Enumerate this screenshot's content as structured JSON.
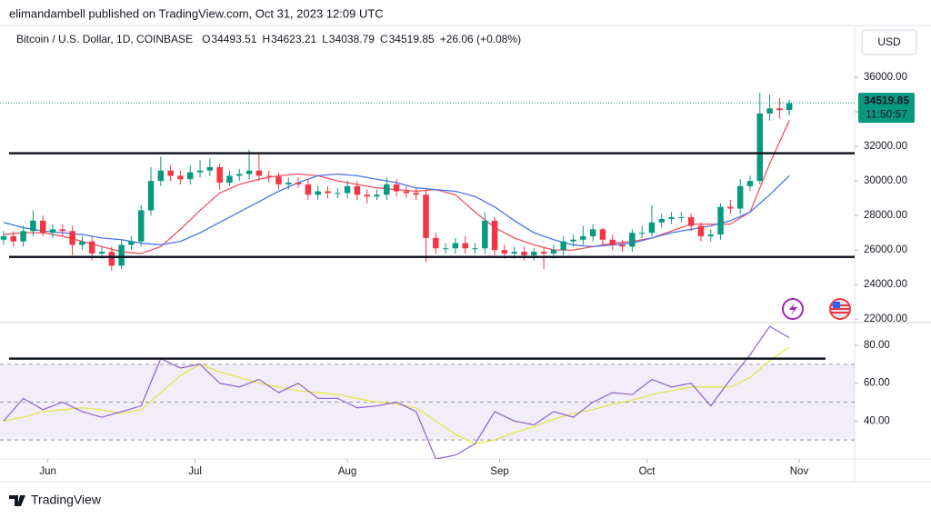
{
  "header": "elimandambell published on TradingView.com, Oct 31, 2023 12:09 UTC",
  "footer": "TradingView",
  "chart_data": {
    "type": "candlestick",
    "title": "Bitcoin / U.S. Dollar, 1D, COINBASE",
    "ohlc_legend": [
      {
        "label": "O",
        "value": "34493.51"
      },
      {
        "label": "H",
        "value": "34623.21"
      },
      {
        "label": "L",
        "value": "34038.79"
      },
      {
        "label": "C",
        "value": "34519.85"
      }
    ],
    "change": "+26.06 (+0.08%)",
    "currency": "USD",
    "up_color": "#089981",
    "down_color": "#f23645",
    "xlim": [
      0,
      172
    ],
    "xticks": [
      {
        "value": 9,
        "label": "Jun"
      },
      {
        "value": 39,
        "label": "Jul"
      },
      {
        "value": 70,
        "label": "Aug"
      },
      {
        "value": 101,
        "label": "Sep"
      },
      {
        "value": 131,
        "label": "Oct"
      },
      {
        "value": 162,
        "label": "Nov"
      }
    ],
    "ylim": [
      21800,
      39000
    ],
    "yticks": [
      {
        "value": 22000,
        "label": "22000.00"
      },
      {
        "value": 24000,
        "label": "24000.00"
      },
      {
        "value": 26000,
        "label": "26000.00"
      },
      {
        "value": 28000,
        "label": "28000.00"
      },
      {
        "value": 30000,
        "label": "30000.00"
      },
      {
        "value": 32000,
        "label": "32000.00"
      },
      {
        "value": 34000,
        "label": "34000.00"
      },
      {
        "value": 36000,
        "label": "36000.00"
      }
    ],
    "last_price": {
      "value": 34519.85,
      "label": "34519.85",
      "countdown": "11:50:57"
    },
    "levels": [
      31600,
      25600
    ],
    "x": [
      0,
      2,
      4,
      6,
      8,
      10,
      12,
      14,
      16,
      18,
      20,
      22,
      24,
      26,
      28,
      30,
      32,
      34,
      36,
      38,
      40,
      42,
      44,
      46,
      48,
      50,
      52,
      54,
      56,
      58,
      60,
      62,
      64,
      66,
      68,
      70,
      72,
      74,
      76,
      78,
      80,
      82,
      84,
      86,
      88,
      90,
      92,
      94,
      96,
      98,
      100,
      102,
      104,
      106,
      108,
      110,
      112,
      114,
      116,
      118,
      120,
      122,
      124,
      126,
      128,
      130,
      132,
      134,
      136,
      138,
      140,
      142,
      144,
      146,
      148,
      150,
      152,
      154,
      156,
      158,
      160
    ],
    "open": [
      26600,
      26800,
      26500,
      27100,
      27700,
      27000,
      27200,
      27100,
      26300,
      26500,
      25800,
      25900,
      25100,
      26300,
      26500,
      28300,
      30000,
      30600,
      30300,
      30100,
      30500,
      30600,
      30800,
      29900,
      30300,
      30400,
      30600,
      30300,
      30250,
      29800,
      29900,
      29800,
      29200,
      29400,
      29300,
      29300,
      29700,
      29200,
      29100,
      29200,
      29800,
      29400,
      29300,
      29200,
      26700,
      26100,
      26100,
      26400,
      26100,
      26100,
      27700,
      26000,
      25800,
      25900,
      25700,
      25900,
      25800,
      26000,
      26500,
      26600,
      26800,
      27200,
      26600,
      26300,
      26200,
      27000,
      27000,
      27600,
      27800,
      27900,
      27900,
      27400,
      26800,
      26900,
      28500,
      28400,
      29700,
      30000,
      33900,
      34200,
      34100
    ],
    "high": [
      27100,
      27100,
      27400,
      28300,
      28000,
      27500,
      27500,
      27400,
      26800,
      26800,
      26200,
      26200,
      26600,
      26800,
      28600,
      30800,
      31400,
      30900,
      30600,
      30900,
      31200,
      31300,
      31000,
      30600,
      30700,
      31800,
      31600,
      30600,
      30500,
      30200,
      30200,
      30100,
      29700,
      29700,
      29600,
      30000,
      30000,
      29500,
      29500,
      30200,
      30100,
      29700,
      29600,
      29500,
      27000,
      26400,
      26700,
      26800,
      26400,
      28200,
      27900,
      26300,
      26200,
      26200,
      26100,
      26200,
      26300,
      26800,
      26900,
      27400,
      27500,
      27300,
      26900,
      26600,
      27200,
      27400,
      28600,
      28100,
      28200,
      28200,
      28100,
      27600,
      27200,
      28700,
      28900,
      30100,
      30300,
      35100,
      35000,
      34800,
      34700
    ],
    "low": [
      26300,
      26200,
      26200,
      26800,
      26800,
      26700,
      26800,
      25700,
      26000,
      25400,
      25500,
      24800,
      24900,
      26000,
      26200,
      28000,
      29700,
      30000,
      29800,
      29800,
      30200,
      30300,
      29500,
      29700,
      30000,
      30100,
      30000,
      29900,
      29500,
      29500,
      29600,
      28900,
      28900,
      29000,
      29000,
      29000,
      28900,
      28700,
      28900,
      28900,
      29100,
      29000,
      28900,
      25300,
      25800,
      25800,
      25800,
      25800,
      25800,
      25800,
      25700,
      25500,
      25500,
      25400,
      25400,
      24900,
      25500,
      25700,
      26200,
      26300,
      26500,
      26300,
      26000,
      25900,
      25900,
      26700,
      26800,
      27300,
      27500,
      27600,
      27100,
      26500,
      26500,
      26600,
      28100,
      28100,
      29400,
      29800,
      33500,
      33600,
      33800
    ],
    "close": [
      26800,
      26500,
      27100,
      27700,
      27000,
      27200,
      27100,
      26300,
      26500,
      25800,
      25900,
      25100,
      26300,
      26500,
      28300,
      30000,
      30600,
      30300,
      30100,
      30500,
      30600,
      30800,
      29900,
      30300,
      30400,
      30600,
      30300,
      30250,
      29800,
      29900,
      29800,
      29200,
      29400,
      29300,
      29300,
      29700,
      29200,
      29100,
      29200,
      29800,
      29400,
      29300,
      29200,
      26700,
      26100,
      26100,
      26400,
      26100,
      26100,
      27700,
      26000,
      25800,
      25900,
      25700,
      25900,
      25800,
      26000,
      26500,
      26600,
      26800,
      27200,
      26600,
      26300,
      26200,
      27000,
      27000,
      27600,
      27800,
      27900,
      27900,
      27400,
      26800,
      26900,
      28500,
      28400,
      29700,
      30000,
      33900,
      34200,
      34100,
      34500
    ],
    "indicator_x": [
      0,
      4,
      8,
      12,
      16,
      20,
      24,
      28,
      32,
      36,
      40,
      44,
      48,
      52,
      56,
      60,
      64,
      68,
      72,
      76,
      80,
      84,
      88,
      92,
      96,
      100,
      104,
      108,
      112,
      116,
      120,
      124,
      128,
      132,
      136,
      140,
      144,
      148,
      152,
      156,
      160
    ],
    "overlays": [
      {
        "color": "#f0525f",
        "values": [
          26900,
          27000,
          27000,
          26800,
          26500,
          26200,
          25900,
          25800,
          26200,
          27200,
          28300,
          29300,
          29800,
          30100,
          30300,
          30400,
          30300,
          30000,
          29800,
          29600,
          29500,
          29400,
          29500,
          29200,
          28200,
          27300,
          26700,
          26300,
          26000,
          26000,
          26200,
          26400,
          26500,
          26700,
          27100,
          27500,
          27500,
          27500,
          28200,
          31000,
          33500
        ]
      },
      {
        "color": "#4a74e8",
        "values": [
          27600,
          27300,
          27100,
          27000,
          26900,
          26700,
          26600,
          26400,
          26300,
          26500,
          27000,
          27600,
          28200,
          28800,
          29400,
          29900,
          30300,
          30400,
          30300,
          30100,
          29900,
          29600,
          29500,
          29400,
          29100,
          28500,
          27700,
          27000,
          26600,
          26300,
          26200,
          26300,
          26400,
          26700,
          27000,
          27200,
          27400,
          27700,
          28200,
          29200,
          30300
        ]
      }
    ],
    "rsi": {
      "ylim": [
        20,
        92
      ],
      "yticks": [
        {
          "value": 40,
          "label": "40.00"
        },
        {
          "value": 60,
          "label": "60.00"
        },
        {
          "value": 80,
          "label": "80.00"
        }
      ],
      "bands": [
        70,
        50,
        30
      ],
      "level": 73,
      "color": "#8e5fd0",
      "ma_color": "#e2e64a",
      "values": [
        40,
        52,
        46,
        50,
        45,
        42,
        45,
        48,
        73,
        68,
        70,
        60,
        58,
        62,
        55,
        60,
        52,
        52,
        47,
        48,
        50,
        45,
        20,
        22,
        28,
        45,
        40,
        38,
        45,
        42,
        50,
        55,
        54,
        62,
        58,
        60,
        48,
        62,
        75,
        90,
        84
      ],
      "ma": [
        40,
        42,
        45,
        46,
        47,
        46,
        44,
        46,
        55,
        64,
        70,
        66,
        63,
        60,
        58,
        56,
        55,
        54,
        52,
        50,
        49,
        47,
        40,
        33,
        28,
        30,
        34,
        37,
        41,
        44,
        46,
        49,
        51,
        54,
        56,
        58,
        58,
        58,
        63,
        72,
        79
      ]
    }
  }
}
